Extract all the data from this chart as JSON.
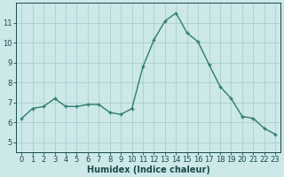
{
  "x": [
    0,
    1,
    2,
    3,
    4,
    5,
    6,
    7,
    8,
    9,
    10,
    11,
    12,
    13,
    14,
    15,
    16,
    17,
    18,
    19,
    20,
    21,
    22,
    23
  ],
  "y": [
    6.2,
    6.7,
    6.8,
    7.2,
    6.8,
    6.8,
    6.9,
    6.9,
    6.5,
    6.4,
    6.7,
    8.8,
    10.15,
    11.1,
    11.5,
    10.5,
    10.05,
    8.9,
    7.8,
    7.2,
    6.3,
    6.2,
    5.7,
    5.4
  ],
  "line_color": "#2e7d6e",
  "marker": "+",
  "marker_size": 3.5,
  "marker_linewidth": 1.0,
  "line_width": 1.0,
  "background_color": "#cce8e8",
  "grid_color": "#aacfcf",
  "xlabel": "Humidex (Indice chaleur)",
  "xlim": [
    -0.5,
    23.5
  ],
  "ylim": [
    4.5,
    12.0
  ],
  "yticks": [
    5,
    6,
    7,
    8,
    9,
    10,
    11
  ],
  "xticks": [
    0,
    1,
    2,
    3,
    4,
    5,
    6,
    7,
    8,
    9,
    10,
    11,
    12,
    13,
    14,
    15,
    16,
    17,
    18,
    19,
    20,
    21,
    22,
    23
  ],
  "font_color": "#1a4a4a",
  "tick_fontsize": 6,
  "label_fontsize": 7
}
